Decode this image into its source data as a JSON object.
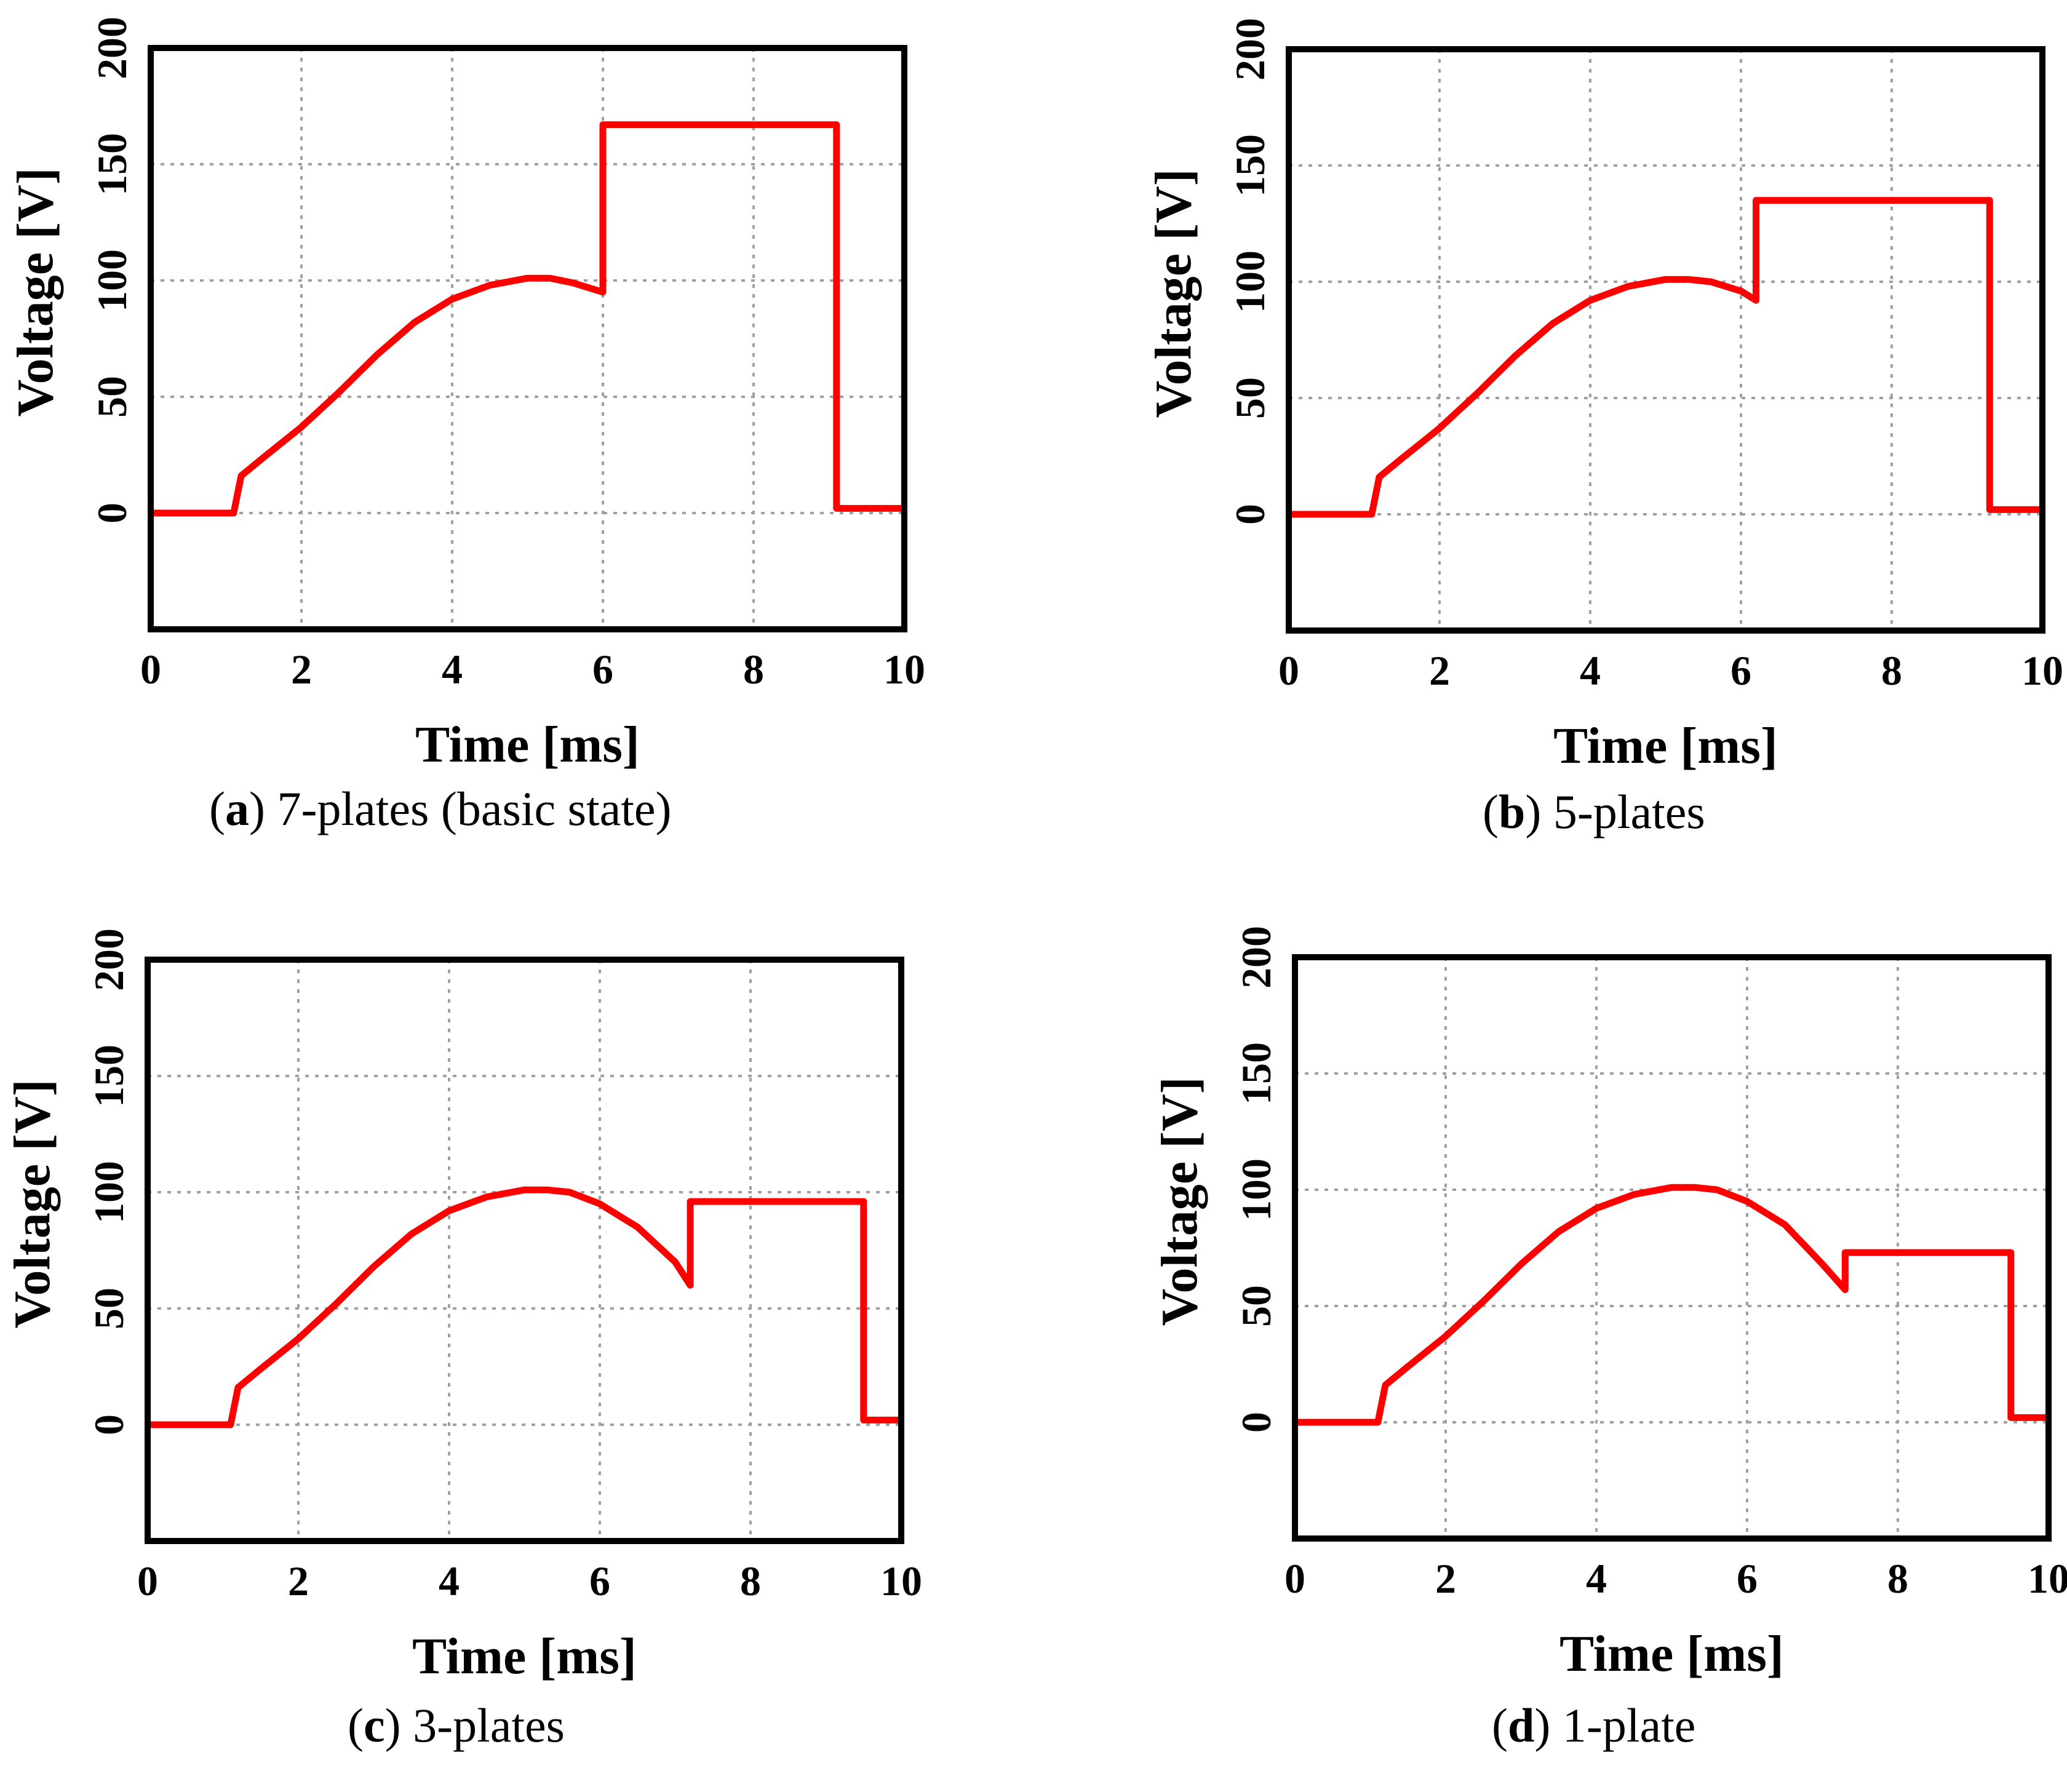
{
  "chart_data": [
    {
      "type": "line",
      "panel": "a",
      "caption_letter": "a",
      "caption_text": "7-plates (basic state)",
      "xlabel": "Time [ms]",
      "ylabel": "Voltage [V]",
      "xlim": [
        0,
        10
      ],
      "ylim": [
        -50,
        200
      ],
      "xticks": [
        "0",
        "2",
        "4",
        "6",
        "8",
        "10"
      ],
      "yticks": [
        "0",
        "50",
        "100",
        "150",
        "200"
      ],
      "grid": true,
      "line_color": "#ff0000",
      "series": [
        {
          "name": "voltage",
          "x": [
            0,
            1.1,
            1.2,
            1.5,
            2,
            2.5,
            3,
            3.5,
            4,
            4.5,
            5,
            5.3,
            5.6,
            6,
            6,
            6,
            9.1,
            9.1,
            10
          ],
          "y": [
            0,
            0,
            16,
            24,
            37,
            52,
            68,
            82,
            92,
            98,
            101,
            101,
            99,
            95,
            95,
            167,
            167,
            2,
            2
          ]
        }
      ]
    },
    {
      "type": "line",
      "panel": "b",
      "caption_letter": "b",
      "caption_text": "5-plates",
      "xlabel": "Time [ms]",
      "ylabel": "Voltage [V]",
      "xlim": [
        0,
        10
      ],
      "ylim": [
        -50,
        200
      ],
      "xticks": [
        "0",
        "2",
        "4",
        "6",
        "8",
        "10"
      ],
      "yticks": [
        "0",
        "50",
        "100",
        "150",
        "200"
      ],
      "grid": true,
      "line_color": "#ff0000",
      "series": [
        {
          "name": "voltage",
          "x": [
            0,
            1.1,
            1.2,
            1.5,
            2,
            2.5,
            3,
            3.5,
            4,
            4.5,
            5,
            5.3,
            5.6,
            6,
            6.2,
            6.2,
            9.3,
            9.3,
            10
          ],
          "y": [
            0,
            0,
            16,
            24,
            37,
            52,
            68,
            82,
            92,
            98,
            101,
            101,
            100,
            96,
            92,
            135,
            135,
            2,
            2
          ]
        }
      ]
    },
    {
      "type": "line",
      "panel": "c",
      "caption_letter": "c",
      "caption_text": "3-plates",
      "xlabel": "Time [ms]",
      "ylabel": "Voltage [V]",
      "xlim": [
        0,
        10
      ],
      "ylim": [
        -50,
        200
      ],
      "xticks": [
        "0",
        "2",
        "4",
        "6",
        "8",
        "10"
      ],
      "yticks": [
        "0",
        "50",
        "100",
        "150",
        "200"
      ],
      "grid": true,
      "line_color": "#ff0000",
      "series": [
        {
          "name": "voltage",
          "x": [
            0,
            1.1,
            1.2,
            1.5,
            2,
            2.5,
            3,
            3.5,
            4,
            4.5,
            5,
            5.3,
            5.6,
            6,
            6.5,
            7,
            7.2,
            7.2,
            9.5,
            9.5,
            10
          ],
          "y": [
            0,
            0,
            16,
            24,
            37,
            52,
            68,
            82,
            92,
            98,
            101,
            101,
            100,
            95,
            85,
            70,
            60,
            96,
            96,
            2,
            2
          ]
        }
      ]
    },
    {
      "type": "line",
      "panel": "d",
      "caption_letter": "d",
      "caption_text": "1-plate",
      "xlabel": "Time [ms]",
      "ylabel": "Voltage [V]",
      "xlim": [
        0,
        10
      ],
      "ylim": [
        -50,
        200
      ],
      "xticks": [
        "0",
        "2",
        "4",
        "6",
        "8",
        "10"
      ],
      "yticks": [
        "0",
        "50",
        "100",
        "150",
        "200"
      ],
      "grid": true,
      "line_color": "#ff0000",
      "series": [
        {
          "name": "voltage",
          "x": [
            0,
            1.1,
            1.2,
            1.5,
            2,
            2.5,
            3,
            3.5,
            4,
            4.5,
            5,
            5.3,
            5.6,
            6,
            6.5,
            7,
            7.3,
            7.3,
            9.5,
            9.5,
            10
          ],
          "y": [
            0,
            0,
            16,
            24,
            37,
            52,
            68,
            82,
            92,
            98,
            101,
            101,
            100,
            95,
            85,
            68,
            57,
            73,
            73,
            2,
            2
          ]
        }
      ]
    }
  ]
}
